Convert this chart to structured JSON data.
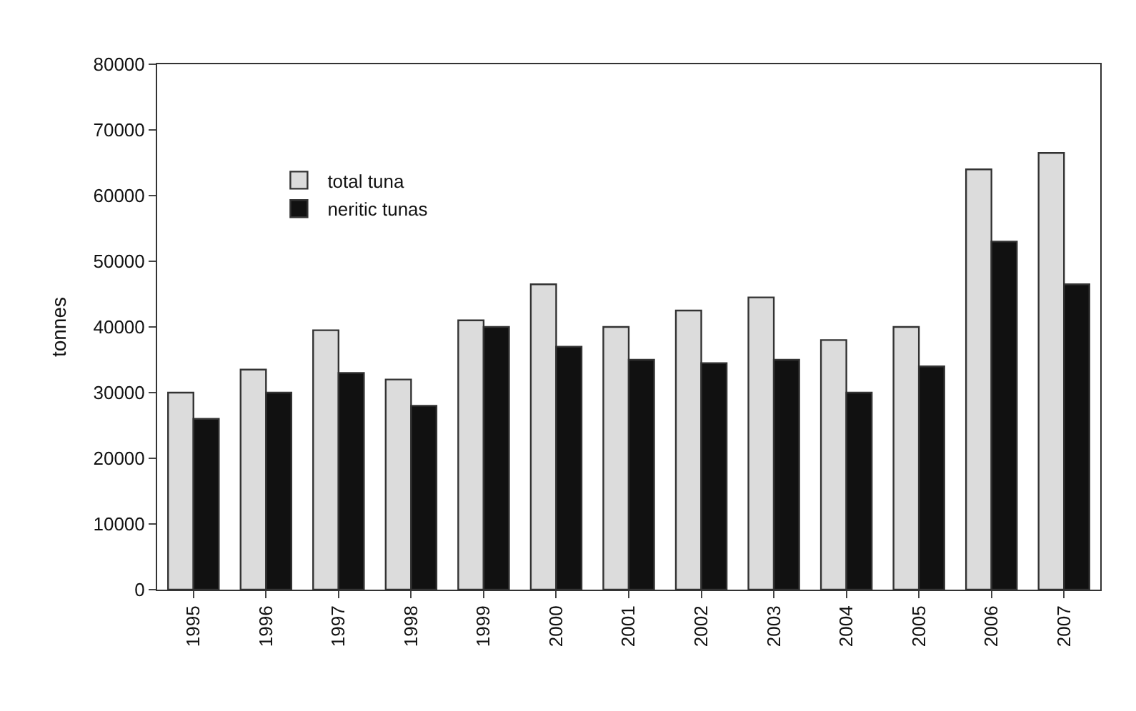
{
  "chart_data": {
    "type": "bar",
    "ylabel": "tonnes",
    "categories": [
      "1995",
      "1996",
      "1997",
      "1998",
      "1999",
      "2000",
      "2001",
      "2002",
      "2003",
      "2004",
      "2005",
      "2006",
      "2007"
    ],
    "series": [
      {
        "name": "total tuna",
        "color": "#dcdcdc",
        "values": [
          30000,
          33500,
          39500,
          32000,
          41000,
          46500,
          40000,
          42500,
          44500,
          38000,
          40000,
          64000,
          66500
        ]
      },
      {
        "name": "neritic tunas",
        "color": "#111111",
        "values": [
          26000,
          30000,
          33000,
          28000,
          40000,
          37000,
          35000,
          34500,
          35000,
          30000,
          34000,
          53000,
          46500
        ]
      }
    ],
    "ylim": [
      0,
      80000
    ],
    "yticks": [
      0,
      10000,
      20000,
      30000,
      40000,
      50000,
      60000,
      70000,
      80000
    ],
    "legend": "top left"
  }
}
